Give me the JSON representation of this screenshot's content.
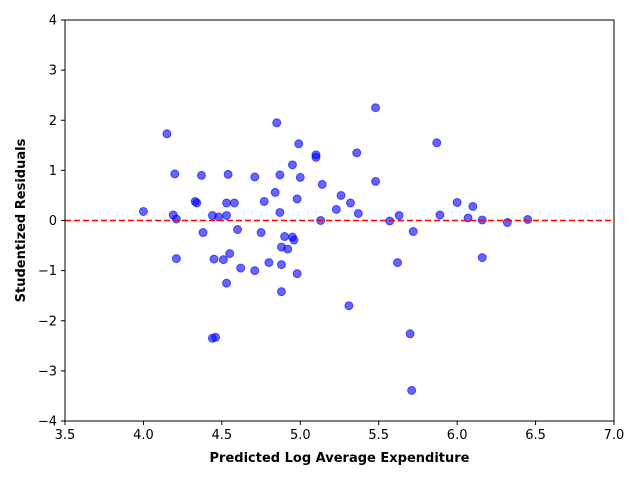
{
  "chart_data": {
    "type": "scatter",
    "title": "",
    "xlabel": "Predicted Log Average Expenditure",
    "ylabel": "Studentized Residuals",
    "xlim": [
      3.5,
      7.0
    ],
    "ylim": [
      -4,
      4
    ],
    "xticks": [
      "3.5",
      "4.0",
      "4.5",
      "5.0",
      "5.5",
      "6.0",
      "6.5",
      "7.0"
    ],
    "yticks": [
      "−4",
      "−3",
      "−2",
      "−1",
      "0",
      "1",
      "2",
      "3",
      "4"
    ],
    "grid": false,
    "marker_color": "#0000ff",
    "marker_opacity": 0.6,
    "reference_line": {
      "y": 0,
      "color": "#ff0000",
      "style": "dashed"
    },
    "points": [
      {
        "x": 4.0,
        "y": 0.18
      },
      {
        "x": 4.15,
        "y": 1.73
      },
      {
        "x": 4.19,
        "y": 0.11
      },
      {
        "x": 4.2,
        "y": 0.93
      },
      {
        "x": 4.21,
        "y": 0.03
      },
      {
        "x": 4.21,
        "y": -0.76
      },
      {
        "x": 4.33,
        "y": 0.38
      },
      {
        "x": 4.34,
        "y": 0.35
      },
      {
        "x": 4.37,
        "y": 0.9
      },
      {
        "x": 4.38,
        "y": -0.24
      },
      {
        "x": 4.44,
        "y": 0.1
      },
      {
        "x": 4.44,
        "y": -2.35
      },
      {
        "x": 4.46,
        "y": -2.33
      },
      {
        "x": 4.45,
        "y": -0.77
      },
      {
        "x": 4.48,
        "y": 0.07
      },
      {
        "x": 4.51,
        "y": -0.78
      },
      {
        "x": 4.53,
        "y": 0.35
      },
      {
        "x": 4.53,
        "y": 0.1
      },
      {
        "x": 4.54,
        "y": 0.92
      },
      {
        "x": 4.53,
        "y": -1.25
      },
      {
        "x": 4.55,
        "y": -0.66
      },
      {
        "x": 4.58,
        "y": 0.35
      },
      {
        "x": 4.6,
        "y": -0.18
      },
      {
        "x": 4.62,
        "y": -0.95
      },
      {
        "x": 4.71,
        "y": 0.87
      },
      {
        "x": 4.71,
        "y": -1.0
      },
      {
        "x": 4.75,
        "y": -0.24
      },
      {
        "x": 4.77,
        "y": 0.38
      },
      {
        "x": 4.8,
        "y": -0.84
      },
      {
        "x": 4.84,
        "y": 0.56
      },
      {
        "x": 4.85,
        "y": 1.95
      },
      {
        "x": 4.87,
        "y": 0.91
      },
      {
        "x": 4.87,
        "y": 0.16
      },
      {
        "x": 4.88,
        "y": -0.53
      },
      {
        "x": 4.88,
        "y": -0.88
      },
      {
        "x": 4.88,
        "y": -1.42
      },
      {
        "x": 4.9,
        "y": -0.32
      },
      {
        "x": 4.92,
        "y": -0.57
      },
      {
        "x": 4.95,
        "y": 1.11
      },
      {
        "x": 4.95,
        "y": -0.33
      },
      {
        "x": 4.96,
        "y": -0.39
      },
      {
        "x": 4.98,
        "y": 0.43
      },
      {
        "x": 4.98,
        "y": -1.06
      },
      {
        "x": 4.99,
        "y": 1.53
      },
      {
        "x": 5.0,
        "y": 0.86
      },
      {
        "x": 5.1,
        "y": 1.31
      },
      {
        "x": 5.1,
        "y": 1.26
      },
      {
        "x": 5.13,
        "y": 0.0
      },
      {
        "x": 5.14,
        "y": 0.72
      },
      {
        "x": 5.23,
        "y": 0.22
      },
      {
        "x": 5.26,
        "y": 0.5
      },
      {
        "x": 5.31,
        "y": -1.7
      },
      {
        "x": 5.32,
        "y": 0.35
      },
      {
        "x": 5.36,
        "y": 1.35
      },
      {
        "x": 5.37,
        "y": 0.14
      },
      {
        "x": 5.48,
        "y": 2.25
      },
      {
        "x": 5.48,
        "y": 0.78
      },
      {
        "x": 5.57,
        "y": -0.01
      },
      {
        "x": 5.62,
        "y": -0.84
      },
      {
        "x": 5.63,
        "y": 0.1
      },
      {
        "x": 5.7,
        "y": -2.26
      },
      {
        "x": 5.71,
        "y": -3.39
      },
      {
        "x": 5.72,
        "y": -0.22
      },
      {
        "x": 5.87,
        "y": 1.55
      },
      {
        "x": 5.89,
        "y": 0.11
      },
      {
        "x": 6.0,
        "y": 0.36
      },
      {
        "x": 6.07,
        "y": 0.05
      },
      {
        "x": 6.1,
        "y": 0.28
      },
      {
        "x": 6.16,
        "y": 0.01
      },
      {
        "x": 6.16,
        "y": -0.74
      },
      {
        "x": 6.32,
        "y": -0.04
      },
      {
        "x": 6.45,
        "y": 0.02
      }
    ]
  }
}
